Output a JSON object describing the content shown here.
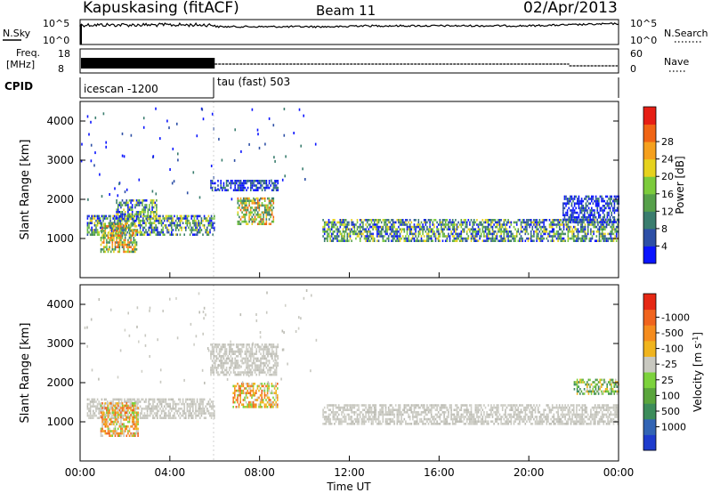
{
  "header": {
    "station": "Kapuskasing (fitACF)",
    "beam": "Beam 11",
    "date": "02/Apr/2013"
  },
  "noise_panel": {
    "left_label": "N.Sky",
    "left_ticks": [
      "10^5",
      "10^0"
    ],
    "right_label": "N.Search",
    "right_ticks": [
      "10^5",
      "10^0"
    ]
  },
  "freq_panel": {
    "left_label_line1": "Freq.",
    "left_label_line2": "[MHz]",
    "left_ticks": [
      "18",
      "8"
    ],
    "right_label": "Nave",
    "right_ticks": [
      "60",
      "0"
    ]
  },
  "cpid_panel": {
    "label": "CPID",
    "segments": [
      {
        "text": "icescan -1200",
        "start_hour": 0,
        "end_hour": 6
      },
      {
        "text": "tau (fast) 503",
        "start_hour": 6,
        "end_hour": 24
      }
    ]
  },
  "time_axis": {
    "label": "Time UT",
    "ticks": [
      "00:00",
      "04:00",
      "08:00",
      "12:00",
      "16:00",
      "20:00",
      "00:00"
    ]
  },
  "chart_data": [
    {
      "type": "heatmap",
      "title": "",
      "xlabel": "Time UT",
      "ylabel": "Slant Range [km]",
      "xlim": [
        0,
        24
      ],
      "ylim": [
        0,
        4500
      ],
      "yticks": [
        1000,
        2000,
        3000,
        4000
      ],
      "colorbar": {
        "label": "Power [dB]",
        "ticks": [
          "4",
          "8",
          "12",
          "16",
          "20",
          "24",
          "28"
        ],
        "colors": [
          "#0a14ff",
          "#2d4fa6",
          "#3a7d6e",
          "#56a04a",
          "#7ccb3c",
          "#e6d21e",
          "#f5a01e",
          "#f06414",
          "#e61e14"
        ]
      },
      "echo_regions": [
        {
          "t_start": 0.3,
          "t_end": 6.0,
          "range_low": 1100,
          "range_high": 1600,
          "level": "medium"
        },
        {
          "t_start": 0.9,
          "t_end": 2.5,
          "range_low": 650,
          "range_high": 1400,
          "level": "medium-high"
        },
        {
          "t_start": 1.6,
          "t_end": 3.4,
          "range_low": 1500,
          "range_high": 2000,
          "level": "medium"
        },
        {
          "t_start": 5.8,
          "t_end": 8.8,
          "range_low": 2250,
          "range_high": 2500,
          "level": "low"
        },
        {
          "t_start": 7.0,
          "t_end": 8.6,
          "range_low": 1350,
          "range_high": 2050,
          "level": "medium-high"
        },
        {
          "t_start": 10.8,
          "t_end": 24.0,
          "range_low": 950,
          "range_high": 1500,
          "level": "medium"
        },
        {
          "t_start": 21.5,
          "t_end": 24.0,
          "range_low": 1400,
          "range_high": 2100,
          "level": "low"
        }
      ]
    },
    {
      "type": "heatmap",
      "title": "",
      "xlabel": "Time UT",
      "ylabel": "Slant Range [km]",
      "xlim": [
        0,
        24
      ],
      "ylim": [
        0,
        4500
      ],
      "yticks": [
        1000,
        2000,
        3000,
        4000
      ],
      "colorbar": {
        "label": "Velocity [m s-1]",
        "label_main": "Velocity",
        "label_unit": "[m s",
        "label_exp": "-1",
        "label_close": "]",
        "ticks": [
          "1000",
          "500",
          "100",
          "25",
          "-25",
          "-100",
          "-500",
          "-1000"
        ],
        "colors": [
          "#1e3ccd",
          "#3264b4",
          "#3c8c5a",
          "#5aa53c",
          "#7cd23c",
          "#c8c8c0",
          "#f0b41e",
          "#f58c1e",
          "#f0641e",
          "#e62814"
        ]
      },
      "echo_regions": [
        {
          "t_start": 0.3,
          "t_end": 6.0,
          "range_low": 1100,
          "range_high": 1600,
          "level": "ground-scatter"
        },
        {
          "t_start": 0.9,
          "t_end": 2.6,
          "range_low": 650,
          "range_high": 1500,
          "level": "negative"
        },
        {
          "t_start": 5.8,
          "t_end": 8.8,
          "range_low": 2200,
          "range_high": 3000,
          "level": "ground-scatter"
        },
        {
          "t_start": 6.8,
          "t_end": 8.8,
          "range_low": 1350,
          "range_high": 2000,
          "level": "negative"
        },
        {
          "t_start": 10.8,
          "t_end": 24.0,
          "range_low": 950,
          "range_high": 1450,
          "level": "ground-scatter"
        },
        {
          "t_start": 22.0,
          "t_end": 24.0,
          "range_low": 1700,
          "range_high": 2100,
          "level": "positive"
        }
      ]
    }
  ]
}
